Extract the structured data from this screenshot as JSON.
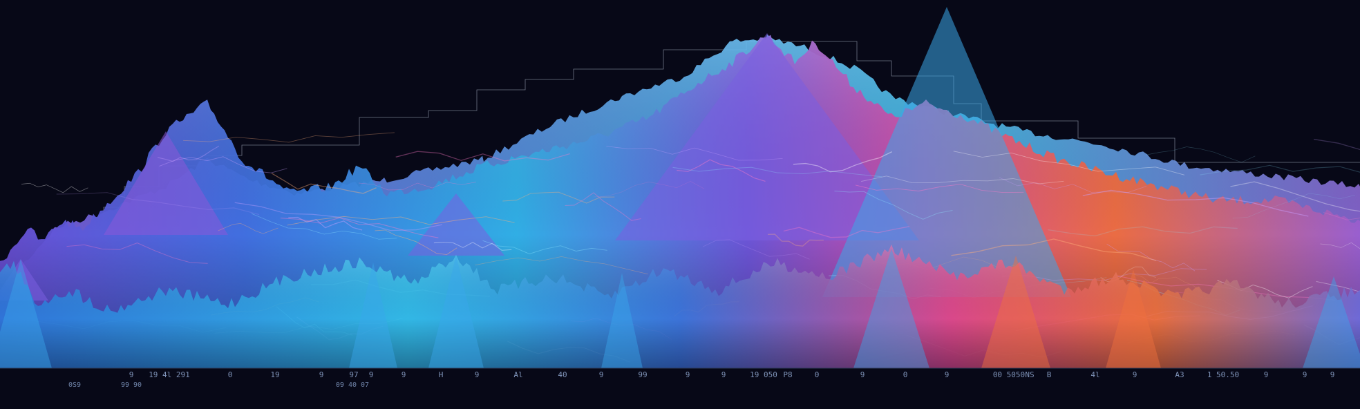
{
  "scene": {
    "description_tag": "",
    "colors": {
      "background": "#070817",
      "cyan": "#29b6e8",
      "blue": "#3d5fd6",
      "violet": "#8a4fd8",
      "magenta": "#e0449a",
      "orange": "#f36a3a",
      "axis": "#7f93b8",
      "step_line": "#c9d3e6"
    }
  },
  "axis": {
    "ticks_row1": [
      "9",
      "19 4l 291",
      "0",
      "19",
      "9",
      "97",
      "9",
      "9",
      "H",
      "9",
      "Al",
      "40",
      "9",
      "99",
      "9",
      "9",
      "19 050",
      "P8",
      "0",
      "9",
      "0",
      "9",
      "00 5050",
      "NS",
      "B",
      "4l",
      "9",
      "A3",
      "1 50.50",
      "9",
      "9",
      "9"
    ],
    "ticks_row2": [
      "0S9",
      "99 90",
      "09 40 07"
    ]
  }
}
